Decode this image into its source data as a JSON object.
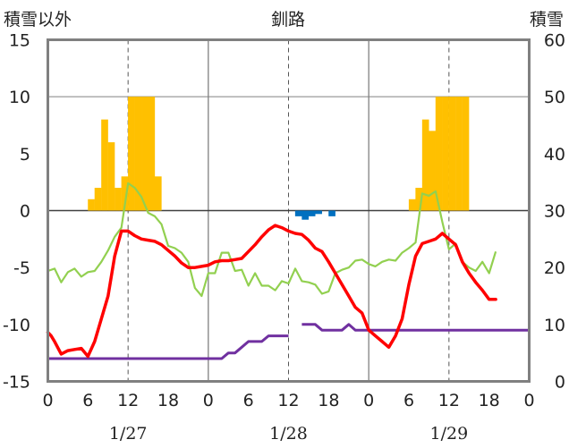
{
  "chart_data": {
    "type": "line",
    "title": "釧路",
    "left_axis_label": "積雪以外",
    "right_axis_label": "積雪",
    "left_ylim": [
      -15,
      15
    ],
    "left_ticks": [
      15,
      10,
      5,
      0,
      -5,
      -10,
      -15
    ],
    "right_ylim": [
      0,
      60
    ],
    "right_ticks": [
      60,
      50,
      40,
      30,
      20,
      10,
      0
    ],
    "x_hours_range": [
      0,
      72
    ],
    "x_tick_labels": [
      "0",
      "6",
      "12",
      "18",
      "0",
      "6",
      "12",
      "18",
      "0",
      "6",
      "12",
      "18",
      "0"
    ],
    "date_labels": [
      "1/27",
      "1/28",
      "1/29"
    ],
    "grid": "dashed vertical lines at hour 12 of each day; solid vertical lines at day boundaries; solid horizontal line at 0",
    "colors": {
      "temperature": "#ff0000",
      "green_series": "#92d050",
      "snow_depth": "#7030a0",
      "snowfall_bars": "#ffc000",
      "precip_bars": "#0070c0",
      "frame": "#808080"
    },
    "series": [
      {
        "key": "temperature",
        "axis": "left",
        "values": [
          [
            0,
            -10.7
          ],
          [
            0.5,
            -11.0
          ],
          [
            1,
            -11.5
          ],
          [
            2,
            -12.6
          ],
          [
            3,
            -12.3
          ],
          [
            4,
            -12.2
          ],
          [
            5,
            -12.1
          ],
          [
            6,
            -12.8
          ],
          [
            7,
            -11.5
          ],
          [
            8,
            -9.5
          ],
          [
            9,
            -7.5
          ],
          [
            10,
            -4.0
          ],
          [
            11,
            -1.8
          ],
          [
            12,
            -1.8
          ],
          [
            13,
            -2.2
          ],
          [
            14,
            -2.5
          ],
          [
            15,
            -2.6
          ],
          [
            16,
            -2.7
          ],
          [
            17,
            -3.0
          ],
          [
            18,
            -3.5
          ],
          [
            19,
            -4.0
          ],
          [
            20,
            -4.6
          ],
          [
            21,
            -5.0
          ],
          [
            22,
            -5.0
          ],
          [
            23,
            -4.9
          ],
          [
            24,
            -4.8
          ],
          [
            25,
            -4.5
          ],
          [
            26,
            -4.4
          ],
          [
            27,
            -4.4
          ],
          [
            28,
            -4.3
          ],
          [
            29,
            -4.2
          ],
          [
            30,
            -3.6
          ],
          [
            31,
            -3.0
          ],
          [
            32,
            -2.3
          ],
          [
            33,
            -1.7
          ],
          [
            34,
            -1.3
          ],
          [
            35,
            -1.5
          ],
          [
            36,
            -1.8
          ],
          [
            37,
            -2.0
          ],
          [
            38,
            -2.1
          ],
          [
            39,
            -2.6
          ],
          [
            40,
            -3.3
          ],
          [
            41,
            -3.6
          ],
          [
            42,
            -4.5
          ],
          [
            43,
            -5.5
          ],
          [
            44,
            -6.5
          ],
          [
            45,
            -7.5
          ],
          [
            46,
            -8.5
          ],
          [
            47,
            -9.0
          ],
          [
            48,
            -10.5
          ],
          [
            49,
            -11.0
          ],
          [
            50,
            -11.5
          ],
          [
            51,
            -12.0
          ],
          [
            52,
            -11.0
          ],
          [
            53,
            -9.5
          ],
          [
            54,
            -6.5
          ],
          [
            55,
            -4.0
          ],
          [
            56,
            -2.9
          ],
          [
            57,
            -2.7
          ],
          [
            58,
            -2.5
          ],
          [
            59,
            -2.0
          ],
          [
            60,
            -2.5
          ],
          [
            61,
            -3.0
          ],
          [
            62,
            -4.5
          ],
          [
            63,
            -5.5
          ],
          [
            64,
            -6.3
          ],
          [
            65,
            -7.0
          ],
          [
            66,
            -7.8
          ],
          [
            67,
            -7.8
          ]
        ]
      },
      {
        "key": "green_series",
        "axis": "left",
        "values": [
          [
            0,
            -5.3
          ],
          [
            1,
            -5.1
          ],
          [
            2,
            -6.3
          ],
          [
            3,
            -5.4
          ],
          [
            4,
            -5.1
          ],
          [
            5,
            -5.8
          ],
          [
            6,
            -5.4
          ],
          [
            7,
            -5.3
          ],
          [
            8,
            -4.5
          ],
          [
            9,
            -3.5
          ],
          [
            10,
            -2.3
          ],
          [
            11,
            -1.5
          ],
          [
            12,
            2.4
          ],
          [
            13,
            2.0
          ],
          [
            14,
            1.2
          ],
          [
            15,
            -0.2
          ],
          [
            16,
            -0.5
          ],
          [
            17,
            -1.2
          ],
          [
            18,
            -3.1
          ],
          [
            19,
            -3.3
          ],
          [
            20,
            -3.7
          ],
          [
            21,
            -4.5
          ],
          [
            22,
            -6.8
          ],
          [
            23,
            -7.5
          ],
          [
            24,
            -5.5
          ],
          [
            25,
            -5.5
          ],
          [
            26,
            -3.7
          ],
          [
            27,
            -3.7
          ],
          [
            28,
            -5.3
          ],
          [
            29,
            -5.2
          ],
          [
            30,
            -6.6
          ],
          [
            31,
            -5.5
          ],
          [
            32,
            -6.6
          ],
          [
            33,
            -6.6
          ],
          [
            34,
            -7.0
          ],
          [
            35,
            -6.2
          ],
          [
            36,
            -6.4
          ],
          [
            37,
            -5.1
          ],
          [
            38,
            -6.2
          ],
          [
            39,
            -6.3
          ],
          [
            40,
            -6.5
          ],
          [
            41,
            -7.3
          ],
          [
            42,
            -7.1
          ],
          [
            43,
            -5.5
          ],
          [
            44,
            -5.2
          ],
          [
            45,
            -5.0
          ],
          [
            46,
            -4.4
          ],
          [
            47,
            -4.3
          ],
          [
            48,
            -4.7
          ],
          [
            49,
            -4.9
          ],
          [
            50,
            -4.5
          ],
          [
            51,
            -4.3
          ],
          [
            52,
            -4.4
          ],
          [
            53,
            -3.7
          ],
          [
            54,
            -3.3
          ],
          [
            55,
            -2.8
          ],
          [
            56,
            1.5
          ],
          [
            57,
            1.3
          ],
          [
            58,
            1.7
          ],
          [
            59,
            -1.0
          ],
          [
            60,
            -3.4
          ],
          [
            61,
            -2.9
          ],
          [
            62,
            -4.5
          ],
          [
            63,
            -5.0
          ],
          [
            64,
            -5.3
          ],
          [
            65,
            -4.5
          ],
          [
            66,
            -5.5
          ],
          [
            67,
            -3.6
          ]
        ]
      },
      {
        "key": "snow_depth",
        "axis": "right",
        "segments": [
          [
            [
              0,
              4
            ],
            [
              26,
              4
            ],
            [
              27,
              5
            ],
            [
              28,
              5
            ],
            [
              29,
              6
            ],
            [
              30,
              7
            ],
            [
              31,
              7
            ],
            [
              32,
              7
            ],
            [
              33,
              8
            ],
            [
              34,
              8
            ],
            [
              35,
              8
            ],
            [
              36,
              8
            ]
          ],
          [
            [
              38,
              10
            ],
            [
              40,
              10
            ],
            [
              41,
              9
            ],
            [
              43,
              9
            ],
            [
              44,
              9
            ],
            [
              45,
              10
            ],
            [
              46,
              9
            ],
            [
              47,
              9
            ],
            [
              48,
              9
            ],
            [
              72,
              9
            ]
          ]
        ]
      }
    ],
    "bars": [
      {
        "key": "snowfall_bars",
        "axis": "left",
        "base": 0,
        "values": [
          [
            6,
            1
          ],
          [
            7,
            2
          ],
          [
            8,
            8
          ],
          [
            9,
            6
          ],
          [
            10,
            2
          ],
          [
            11,
            3
          ],
          [
            12,
            10
          ],
          [
            13,
            10
          ],
          [
            14,
            10
          ],
          [
            15,
            10
          ],
          [
            16,
            3
          ],
          [
            54,
            1
          ],
          [
            55,
            2
          ],
          [
            56,
            8
          ],
          [
            57,
            7
          ],
          [
            58,
            10
          ],
          [
            59,
            10
          ],
          [
            60,
            10
          ],
          [
            61,
            10
          ],
          [
            62,
            10
          ]
        ]
      },
      {
        "key": "precip_bars",
        "axis": "left",
        "base": 0,
        "values": [
          [
            37,
            -0.5
          ],
          [
            38,
            -0.8
          ],
          [
            39,
            -0.5
          ],
          [
            40,
            -0.3
          ],
          [
            42,
            -0.5
          ]
        ]
      }
    ]
  }
}
